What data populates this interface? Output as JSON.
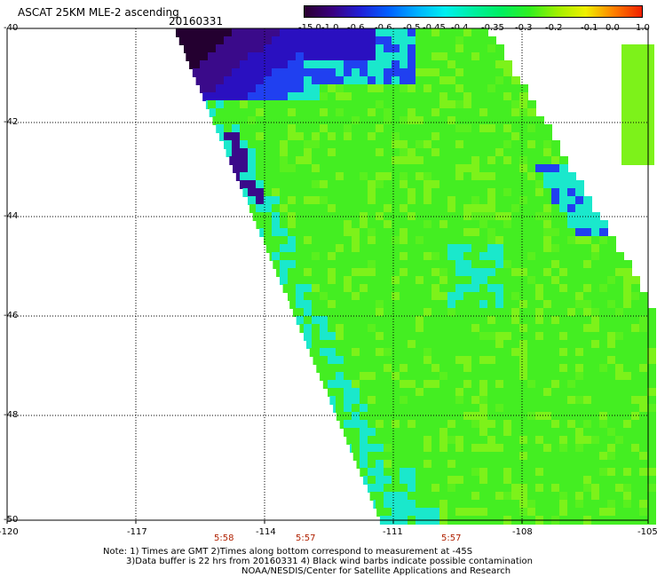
{
  "header": {
    "title": "ASCAT 25KM MLE-2 ascending",
    "date": "20160331"
  },
  "colorbar": {
    "labels": [
      "-15.0",
      "-1.0",
      "-0.6",
      "-0.6",
      "-0.5",
      "-0.45",
      "-0.4",
      "-0.35",
      "-0.3",
      "-0.2",
      "-0.1",
      "0.0",
      "1.0"
    ],
    "colors": [
      "#2a0030",
      "#3a0080",
      "#2020d8",
      "#0060ff",
      "#00b0ff",
      "#00f0f0",
      "#00f0a0",
      "#00f060",
      "#30f020",
      "#a0f000",
      "#f0f000",
      "#ff8000",
      "#f02000"
    ]
  },
  "map": {
    "y_axis_labels": [
      "-40",
      "-42",
      "-44",
      "-46",
      "-48",
      "-50"
    ],
    "x_axis_labels": [
      "-120",
      "-117",
      "-114",
      "-111",
      "-108",
      "-105"
    ],
    "pass_times": [
      "5:58",
      "5:57",
      "5:57"
    ],
    "colors": {
      "dominant": "#44ee22",
      "light_green": "#7df21a",
      "cyan": "#1ae8cc",
      "blue": "#2040f0",
      "deep_blue": "#2a10c0",
      "purple": "#3a0a8a",
      "dark": "#240030"
    }
  },
  "footer": {
    "note_line1": "Note: 1) Times are GMT 2)Times along bottom correspond to measurement at -45S",
    "note_line2": "3)Data buffer is 22 hrs from 20160331 4) Black wind barbs indicate possible contamination",
    "note_line3": "NOAA/NESDIS/Center for Satellite Applications and Research"
  }
}
